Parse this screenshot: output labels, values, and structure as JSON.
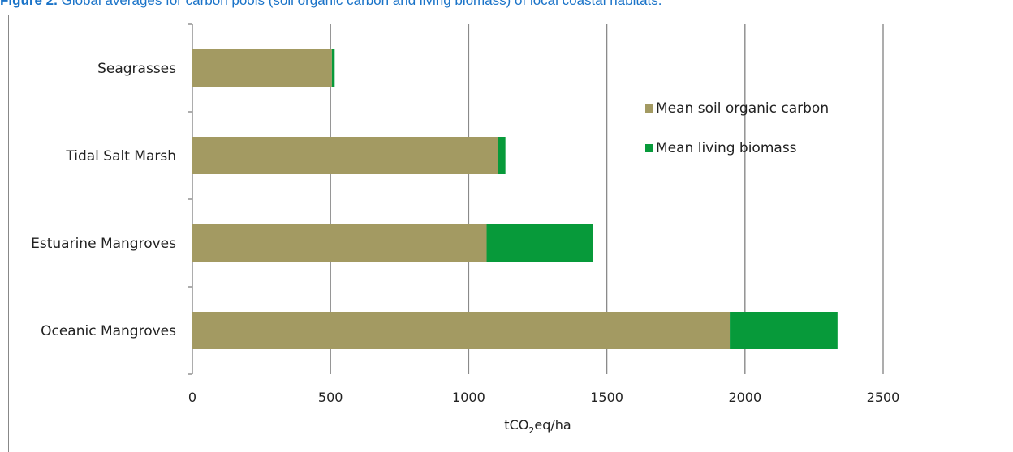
{
  "caption": {
    "lead": "Figure 2.",
    "text": "Global averages for carbon pools (soil organic carbon and living biomass) of local coastal habitats."
  },
  "chart_data": {
    "type": "bar",
    "orientation": "horizontal",
    "stacked": true,
    "categories": [
      "Seagrasses",
      "Tidal Salt Marsh",
      "Estuarine Mangroves",
      "Oceanic Mangroves"
    ],
    "series": [
      {
        "name": "Mean soil organic carbon",
        "color": "#a39a62",
        "values": [
          505,
          1105,
          1065,
          1945
        ]
      },
      {
        "name": "Mean living biomass",
        "color": "#079a3a",
        "values": [
          10,
          28,
          385,
          390
        ]
      }
    ],
    "x_ticks": [
      0,
      500,
      1000,
      1500,
      2000,
      2500
    ],
    "xlim": [
      0,
      2500
    ],
    "xlabel_parts": [
      "tCO",
      "2",
      "eq/ha"
    ],
    "grid": "vertical",
    "legend": "right"
  }
}
